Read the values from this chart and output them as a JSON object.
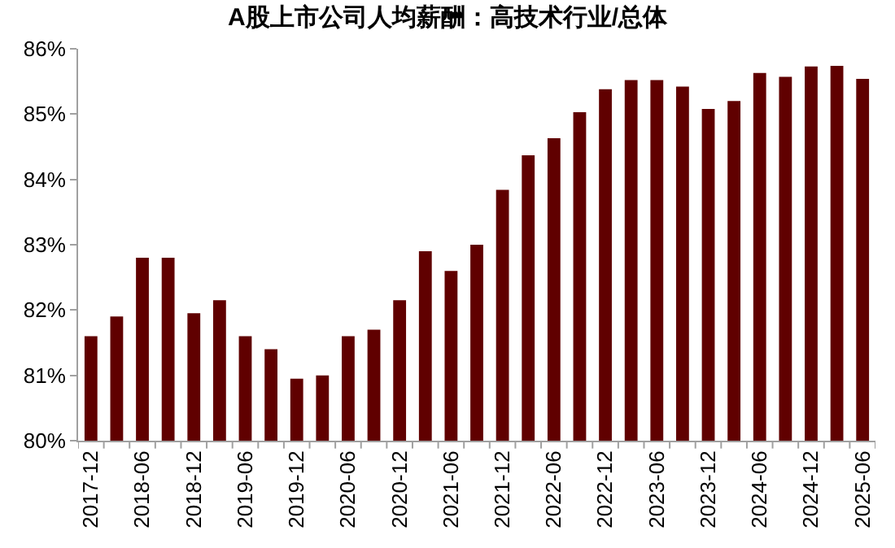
{
  "chart_data": {
    "type": "bar",
    "title": "A股上市公司人均薪酬：高技术行业/总体",
    "categories": [
      "2017-12",
      null,
      "2018-06",
      null,
      "2018-12",
      null,
      "2019-06",
      null,
      "2019-12",
      null,
      "2020-06",
      null,
      "2020-12",
      null,
      "2021-06",
      null,
      "2021-12",
      null,
      "2022-06",
      null,
      "2022-12",
      null,
      "2023-06",
      null,
      "2023-12",
      null,
      "2024-06",
      null,
      "2024-12",
      null,
      "2025-06"
    ],
    "values": [
      81.6,
      81.9,
      82.8,
      82.8,
      81.95,
      82.15,
      81.6,
      81.4,
      80.95,
      81.0,
      81.6,
      81.7,
      82.15,
      82.9,
      82.6,
      83.0,
      83.84,
      84.37,
      84.63,
      85.03,
      85.38,
      85.52,
      85.52,
      85.42,
      85.08,
      85.2,
      85.63,
      85.57,
      85.73,
      85.74,
      85.54
    ],
    "color": "#600000",
    "ylim": [
      80,
      86
    ],
    "yticks": [
      {
        "value": 80,
        "label": "80%"
      },
      {
        "value": 81,
        "label": "81%"
      },
      {
        "value": 82,
        "label": "82%"
      },
      {
        "value": 83,
        "label": "83%"
      },
      {
        "value": 84,
        "label": "84%"
      },
      {
        "value": 85,
        "label": "85%"
      },
      {
        "value": 86,
        "label": "86%"
      }
    ]
  }
}
